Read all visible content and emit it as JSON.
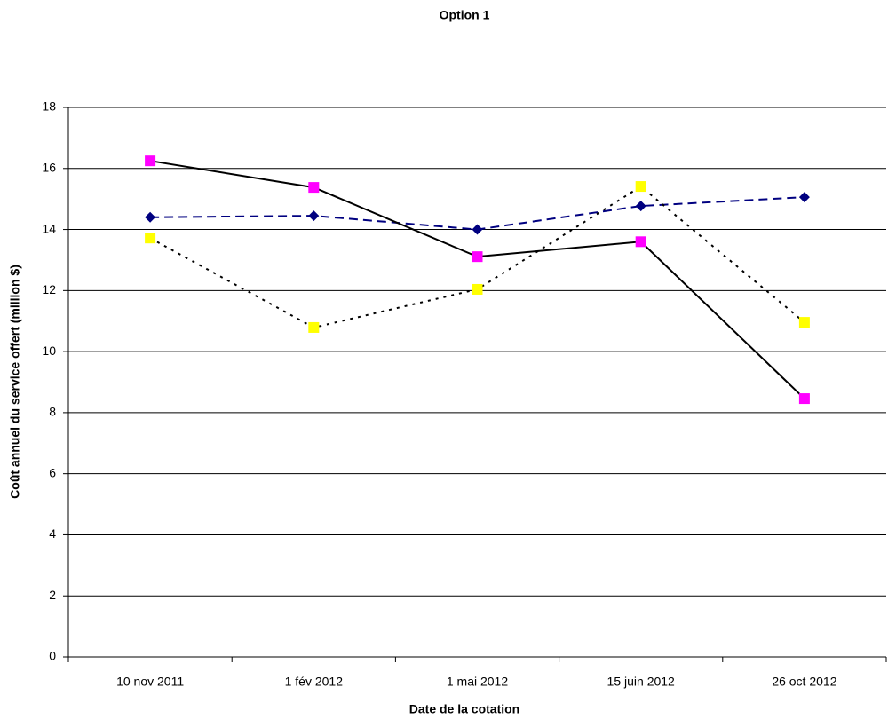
{
  "chart_data": {
    "type": "line",
    "title": "Option 1",
    "x_label": "Date de la cotation",
    "y_label": "Coût annuel du service offert (million $)",
    "categories": [
      "10 nov 2011",
      "1 fév 2012",
      "1 mai 2012",
      "15 juin 2012",
      "26 oct 2012"
    ],
    "series": [
      {
        "color": "#000080",
        "marker_color": "#000080",
        "marker": "diamond",
        "dash": "10,6",
        "values": [
          14.4,
          14.45,
          14.0,
          14.77,
          15.06
        ]
      },
      {
        "color": "#000000",
        "marker_color": "#ff00ff",
        "marker": "square",
        "dash": "none",
        "values": [
          16.25,
          15.38,
          13.11,
          13.6,
          8.46
        ]
      },
      {
        "color": "#000000",
        "marker_color": "#ffff00",
        "marker": "square",
        "dash": "3,6",
        "values": [
          13.72,
          10.79,
          12.04,
          15.41,
          10.96
        ]
      }
    ],
    "ylim": [
      0,
      18
    ],
    "yticks": [
      0,
      2,
      4,
      6,
      8,
      10,
      12,
      14,
      16,
      18
    ],
    "grid": true
  }
}
